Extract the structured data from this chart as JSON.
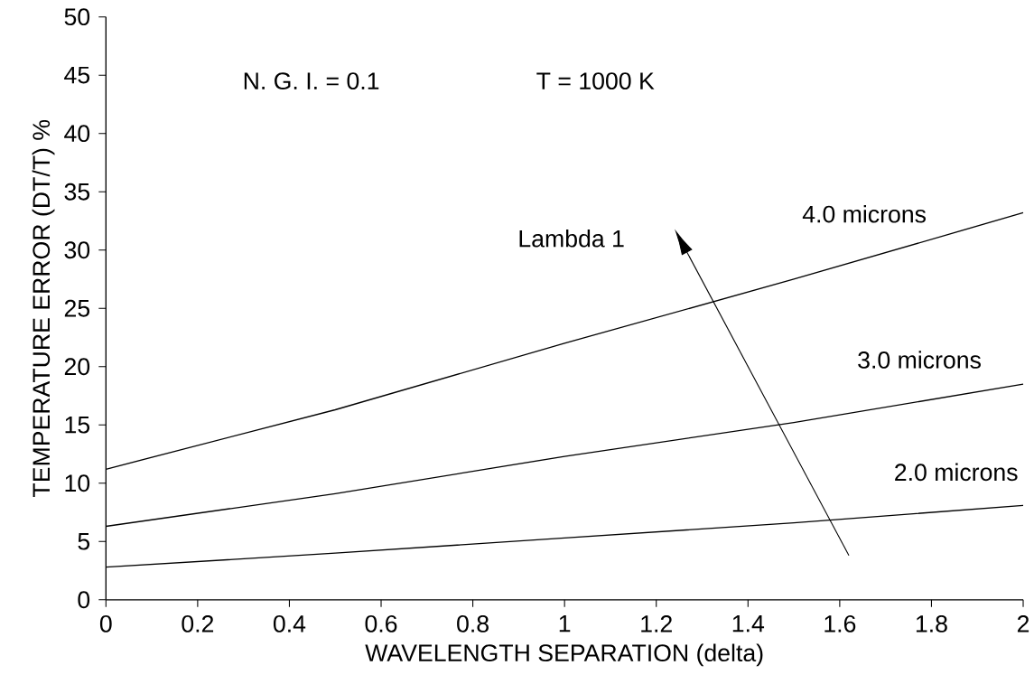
{
  "chart_data": {
    "type": "line",
    "xlabel": "WAVELENGTH SEPARATION (delta)",
    "ylabel": "TEMPERATURE ERROR (DT/T) %",
    "x": [
      0,
      0.5,
      1,
      1.5,
      2
    ],
    "series": [
      {
        "name": "4.0  microns",
        "color": "#000000",
        "values": [
          11.2,
          16.3,
          22,
          27.5,
          33.2
        ]
      },
      {
        "name": "3.0  microns",
        "color": "#000000",
        "values": [
          6.3,
          9.1,
          12.3,
          15.2,
          18.5
        ]
      },
      {
        "name": "2.0  microns",
        "color": "#000000",
        "values": [
          2.8,
          4.0,
          5.3,
          6.6,
          8.1
        ]
      }
    ],
    "xlim": [
      0,
      2
    ],
    "ylim": [
      0,
      50
    ],
    "xticks": [
      0,
      0.2,
      0.4,
      0.6,
      0.8,
      1,
      1.2,
      1.4,
      1.6,
      1.8,
      2
    ],
    "yticks": [
      0,
      5,
      10,
      15,
      20,
      25,
      30,
      35,
      40,
      45,
      50
    ],
    "annotations": [
      "N. G. I.  =  0.1",
      "T  =  1000 K",
      "Lambda 1"
    ]
  }
}
